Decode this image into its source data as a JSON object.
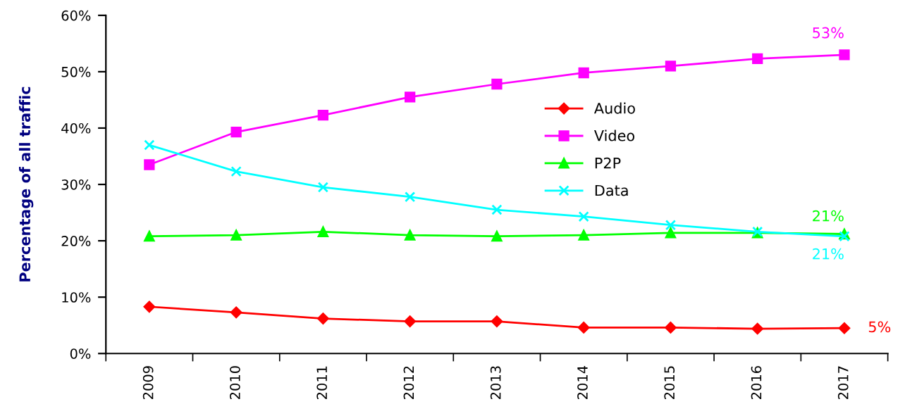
{
  "chart_data": {
    "type": "line",
    "ylabel": "Percentage of all traffic",
    "categories": [
      "2009",
      "2010",
      "2011",
      "2012",
      "2013",
      "2014",
      "2015",
      "2016",
      "2017"
    ],
    "series": [
      {
        "name": "Audio",
        "color": "#ff0000",
        "marker": "diamond",
        "values": [
          8.3,
          7.3,
          6.2,
          5.7,
          5.7,
          4.6,
          4.6,
          4.4,
          4.5
        ],
        "value_labels": [
          null,
          null,
          null,
          null,
          null,
          null,
          null,
          null,
          "5%"
        ]
      },
      {
        "name": "Video",
        "color": "#ff00ff",
        "marker": "square",
        "values": [
          33.5,
          39.3,
          42.3,
          45.5,
          47.8,
          49.8,
          51.0,
          52.3,
          53.0
        ],
        "value_labels": [
          null,
          null,
          null,
          null,
          null,
          null,
          null,
          null,
          "53%"
        ]
      },
      {
        "name": "P2P",
        "color": "#00ff00",
        "marker": "triangle",
        "values": [
          20.8,
          21.0,
          21.6,
          21.0,
          20.8,
          21.0,
          21.4,
          21.4,
          21.2
        ],
        "value_labels": [
          null,
          null,
          null,
          null,
          null,
          null,
          null,
          null,
          "21%"
        ]
      },
      {
        "name": "Data",
        "color": "#00ffff",
        "marker": "cross",
        "values": [
          37.0,
          32.3,
          29.5,
          27.8,
          25.5,
          24.3,
          22.8,
          21.6,
          20.8
        ],
        "value_labels": [
          null,
          null,
          null,
          null,
          null,
          null,
          null,
          null,
          "21%"
        ]
      }
    ],
    "ylim": [
      0,
      60
    ],
    "yticks": [
      {
        "value": 0,
        "label": "0%"
      },
      {
        "value": 10,
        "label": "10%"
      },
      {
        "value": 20,
        "label": "20%"
      },
      {
        "value": 30,
        "label": "30%"
      },
      {
        "value": 40,
        "label": "40%"
      },
      {
        "value": 50,
        "label": "50%"
      },
      {
        "value": 60,
        "label": "60%"
      }
    ],
    "grid": false,
    "legend": "center",
    "line_style": "solid"
  }
}
